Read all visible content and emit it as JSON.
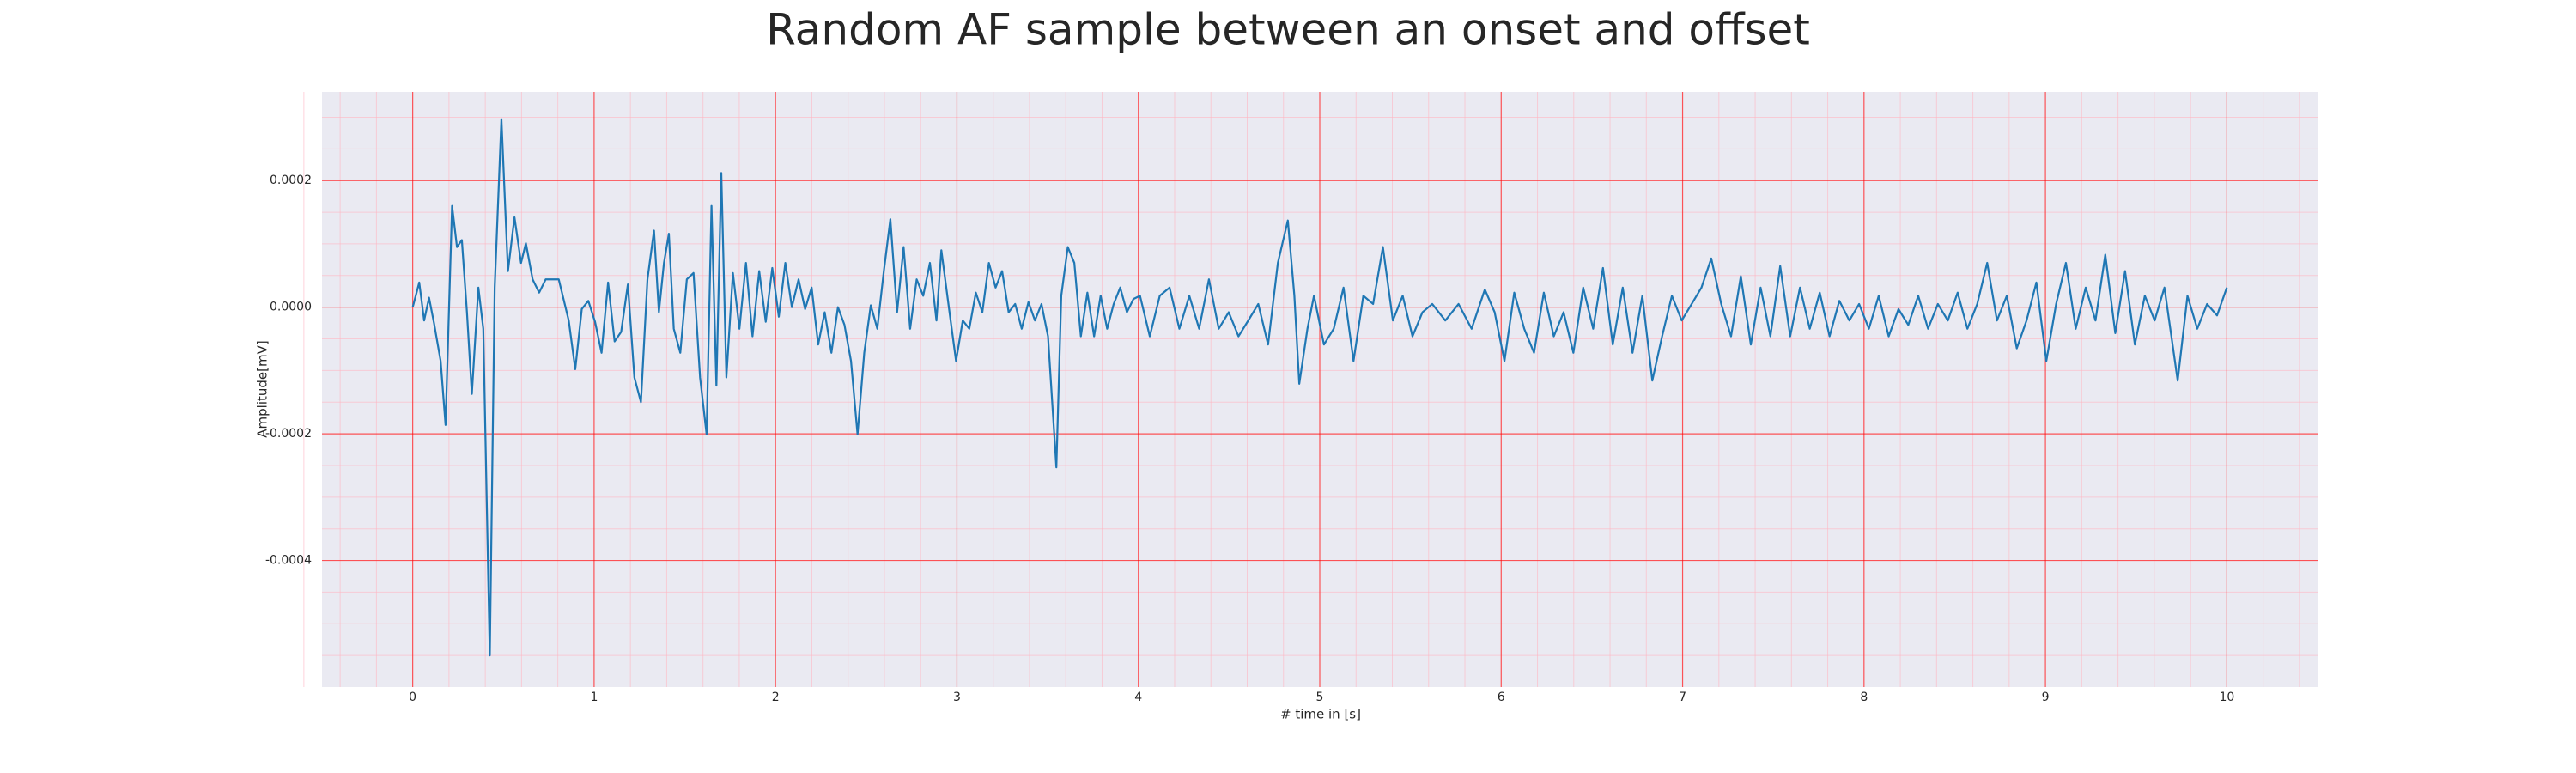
{
  "chart_data": {
    "type": "line",
    "title": "Random AF sample between an onset and offset",
    "x_label": "# time in [s]",
    "y_label": "Amplitude[mV]",
    "xlim": [
      -0.5,
      10.5
    ],
    "ylim": [
      -0.0006,
      0.00034
    ],
    "xticks": [
      0,
      1,
      2,
      3,
      4,
      5,
      6,
      7,
      8,
      9,
      10
    ],
    "yticks": [
      {
        "value": -0.0004,
        "label": "-0.0004"
      },
      {
        "value": -0.0002,
        "label": "-0.0002"
      },
      {
        "value": 0,
        "label": "0.0000"
      },
      {
        "value": 0.0002,
        "label": "0.0002"
      }
    ],
    "grid": true,
    "grid_color": "#ff0000",
    "minor_grid": true,
    "minor_grid_color": "#ffb6c1",
    "x_minor_divisions": 5,
    "y_minor_divisions": 4,
    "background": "#eaeaf2",
    "x": [
      0,
      0.036,
      0.063,
      0.09,
      0.118,
      0.154,
      0.181,
      0.217,
      0.244,
      0.271,
      0.299,
      0.326,
      0.362,
      0.389,
      0.425,
      0.452,
      0.489,
      0.525,
      0.561,
      0.597,
      0.624,
      0.661,
      0.697,
      0.733,
      0.805,
      0.86,
      0.896,
      0.932,
      0.968,
      1.005,
      1.041,
      1.077,
      1.113,
      1.149,
      1.186,
      1.222,
      1.258,
      1.294,
      1.33,
      1.357,
      1.385,
      1.412,
      1.439,
      1.475,
      1.511,
      1.548,
      1.584,
      1.62,
      1.647,
      1.674,
      1.701,
      1.729,
      1.765,
      1.801,
      1.837,
      1.873,
      1.91,
      1.946,
      1.982,
      2.018,
      2.054,
      2.09,
      2.127,
      2.163,
      2.199,
      2.235,
      2.271,
      2.308,
      2.344,
      2.38,
      2.416,
      2.452,
      2.489,
      2.525,
      2.561,
      2.597,
      2.633,
      2.67,
      2.706,
      2.742,
      2.778,
      2.814,
      2.851,
      2.887,
      2.914,
      2.959,
      2.995,
      3.032,
      3.068,
      3.104,
      3.14,
      3.176,
      3.213,
      3.249,
      3.285,
      3.321,
      3.357,
      3.394,
      3.43,
      3.466,
      3.502,
      3.548,
      3.575,
      3.611,
      3.647,
      3.683,
      3.719,
      3.756,
      3.792,
      3.828,
      3.864,
      3.9,
      3.937,
      3.973,
      4.009,
      4.063,
      4.118,
      4.172,
      4.226,
      4.281,
      4.335,
      4.389,
      4.443,
      4.498,
      4.552,
      4.606,
      4.661,
      4.715,
      4.769,
      4.824,
      4.86,
      4.887,
      4.932,
      4.968,
      5.023,
      5.077,
      5.131,
      5.186,
      5.24,
      5.294,
      5.348,
      5.403,
      5.457,
      5.511,
      5.566,
      5.62,
      5.692,
      5.765,
      5.837,
      5.91,
      5.964,
      6.018,
      6.072,
      6.127,
      6.181,
      6.235,
      6.29,
      6.344,
      6.398,
      6.452,
      6.507,
      6.561,
      6.615,
      6.67,
      6.724,
      6.778,
      6.833,
      6.887,
      6.941,
      6.995,
      7.05,
      7.104,
      7.158,
      7.213,
      7.267,
      7.321,
      7.376,
      7.43,
      7.484,
      7.538,
      7.593,
      7.647,
      7.701,
      7.756,
      7.81,
      7.864,
      7.919,
      7.973,
      8.027,
      8.081,
      8.136,
      8.19,
      8.244,
      8.299,
      8.353,
      8.407,
      8.462,
      8.516,
      8.57,
      8.624,
      8.679,
      8.733,
      8.787,
      8.842,
      8.896,
      8.95,
      9.005,
      9.059,
      9.113,
      9.167,
      9.222,
      9.276,
      9.33,
      9.385,
      9.439,
      9.493,
      9.548,
      9.602,
      9.656,
      9.729,
      9.783,
      9.837,
      9.891,
      9.946,
      10
    ],
    "series": [
      {
        "color": "#1f77b4",
        "values": [
          0,
          3.9e-05,
          -2.1e-05,
          1.5e-05,
          -2.6e-05,
          -8.5e-05,
          -0.000186,
          0.00016,
          9.5e-05,
          0.000106,
          -8e-06,
          -0.000137,
          3.1e-05,
          -3.4e-05,
          -0.00055,
          3.1e-05,
          0.000297,
          5.7e-05,
          0.000142,
          7e-05,
          0.000101,
          4.4e-05,
          2.3e-05,
          4.4e-05,
          4.4e-05,
          -2.1e-05,
          -9.8e-05,
          -3e-06,
          1e-05,
          -2.3e-05,
          -7.2e-05,
          3.9e-05,
          -5.4e-05,
          -3.9e-05,
          3.6e-05,
          -0.000111,
          -0.00015,
          4.4e-05,
          0.000121,
          -8e-06,
          7e-05,
          0.000116,
          -3.4e-05,
          -7.2e-05,
          4.4e-05,
          5.4e-05,
          -0.000111,
          -0.000201,
          0.00016,
          -0.000124,
          0.000212,
          -0.000111,
          5.4e-05,
          -3.4e-05,
          7e-05,
          -4.6e-05,
          5.7e-05,
          -2.3e-05,
          6.2e-05,
          -1.5e-05,
          7e-05,
          0,
          4.4e-05,
          -3e-06,
          3.1e-05,
          -5.9e-05,
          -8e-06,
          -7.2e-05,
          0,
          -2.8e-05,
          -8.5e-05,
          -0.000201,
          -7.2e-05,
          3e-06,
          -3.4e-05,
          5.7e-05,
          0.000139,
          -8e-06,
          9.5e-05,
          -3.4e-05,
          4.4e-05,
          1.8e-05,
          7e-05,
          -2.1e-05,
          9e-05,
          -8e-06,
          -8.5e-05,
          -2.1e-05,
          -3.4e-05,
          2.3e-05,
          -8e-06,
          7e-05,
          3.1e-05,
          5.7e-05,
          -8e-06,
          5e-06,
          -3.4e-05,
          8e-06,
          -2.1e-05,
          5e-06,
          -4.6e-05,
          -0.000253,
          1.8e-05,
          9.5e-05,
          7e-05,
          -4.6e-05,
          2.3e-05,
          -4.6e-05,
          1.8e-05,
          -3.4e-05,
          5e-06,
          3.1e-05,
          -8e-06,
          1.3e-05,
          1.8e-05,
          -4.6e-05,
          1.8e-05,
          3.1e-05,
          -3.4e-05,
          1.8e-05,
          -3.4e-05,
          4.4e-05,
          -3.4e-05,
          -8e-06,
          -4.6e-05,
          -2.1e-05,
          5e-06,
          -5.9e-05,
          7e-05,
          0.000137,
          1.8e-05,
          -0.000121,
          -3.4e-05,
          1.8e-05,
          -5.9e-05,
          -3.4e-05,
          3.1e-05,
          -8.5e-05,
          1.8e-05,
          5e-06,
          9.5e-05,
          -2.1e-05,
          1.8e-05,
          -4.6e-05,
          -8e-06,
          5e-06,
          -2.1e-05,
          5e-06,
          -3.4e-05,
          2.8e-05,
          -8e-06,
          -8.5e-05,
          2.3e-05,
          -3.4e-05,
          -7.2e-05,
          2.3e-05,
          -4.6e-05,
          -8e-06,
          -7.2e-05,
          3.1e-05,
          -3.4e-05,
          6.2e-05,
          -5.9e-05,
          3.1e-05,
          -7.2e-05,
          1.8e-05,
          -0.000116,
          -4.6e-05,
          1.8e-05,
          -2.1e-05,
          5e-06,
          3.1e-05,
          7.7e-05,
          5e-06,
          -4.6e-05,
          4.9e-05,
          -5.9e-05,
          3.1e-05,
          -4.6e-05,
          6.5e-05,
          -4.6e-05,
          3.1e-05,
          -3.4e-05,
          2.3e-05,
          -4.6e-05,
          1e-05,
          -2.1e-05,
          5e-06,
          -3.4e-05,
          1.8e-05,
          -4.6e-05,
          -3e-06,
          -2.8e-05,
          1.8e-05,
          -3.4e-05,
          5e-06,
          -2.1e-05,
          2.3e-05,
          -3.4e-05,
          5e-06,
          7e-05,
          -2.1e-05,
          1.8e-05,
          -6.5e-05,
          -2.1e-05,
          3.9e-05,
          -8.5e-05,
          5e-06,
          7e-05,
          -3.4e-05,
          3.1e-05,
          -2.1e-05,
          8.3e-05,
          -4.1e-05,
          5.7e-05,
          -5.9e-05,
          1.8e-05,
          -2.1e-05,
          3.1e-05,
          -0.000116,
          1.8e-05,
          -3.4e-05,
          5e-06,
          -1.3e-05,
          3.1e-05
        ]
      }
    ]
  }
}
